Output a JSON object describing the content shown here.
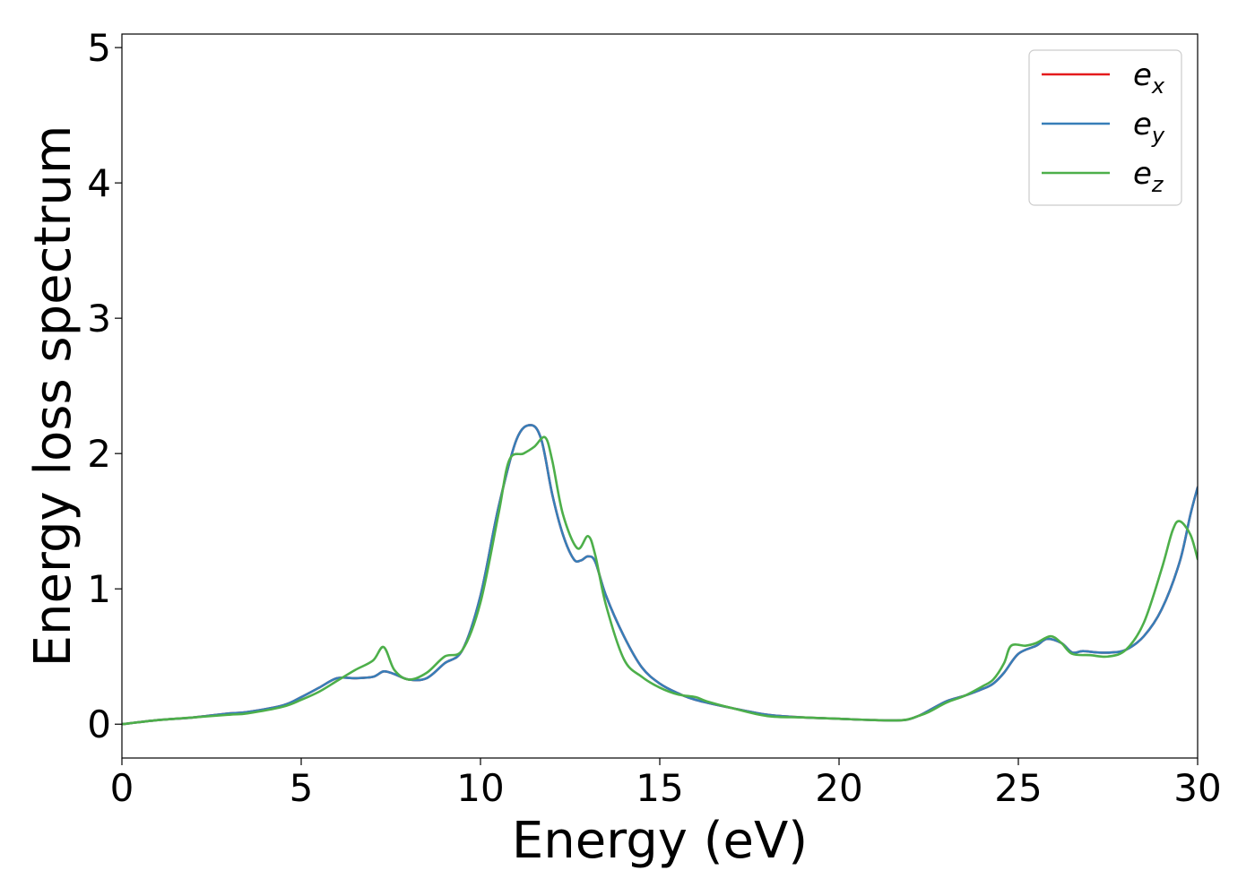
{
  "chart_data": {
    "type": "line",
    "xlabel": "Energy (eV)",
    "ylabel": "Energy loss spectrum",
    "xlim": [
      0,
      30
    ],
    "ylim": [
      -0.25,
      5.1
    ],
    "xticks": [
      0,
      5,
      10,
      15,
      20,
      25,
      30
    ],
    "yticks": [
      0,
      1,
      2,
      3,
      4,
      5
    ],
    "grid": false,
    "legend_position": "top-right",
    "series": [
      {
        "name": "e_x",
        "label_base": "e",
        "label_sub": "x",
        "color": "#e41a1c",
        "x": [
          0,
          1,
          2,
          3,
          3.5,
          4.5,
          5,
          5.5,
          6,
          6.5,
          7,
          7.3,
          7.6,
          8,
          8.5,
          9,
          9.5,
          10,
          10.5,
          11,
          11.4,
          11.7,
          12,
          12.3,
          12.6,
          12.8,
          13,
          13.2,
          13.5,
          14,
          14.5,
          15,
          15.5,
          16,
          17,
          18,
          19,
          20,
          21,
          21.8,
          22.2,
          22.5,
          23,
          23.5,
          24,
          24.3,
          24.6,
          25,
          25.5,
          25.8,
          26.2,
          26.5,
          26.8,
          27.2,
          27.6,
          28,
          28.5,
          29,
          29.5,
          29.8,
          30
        ],
        "y": [
          0,
          0.03,
          0.05,
          0.08,
          0.09,
          0.14,
          0.2,
          0.27,
          0.34,
          0.34,
          0.35,
          0.39,
          0.37,
          0.33,
          0.34,
          0.45,
          0.55,
          0.95,
          1.6,
          2.1,
          2.21,
          2.1,
          1.7,
          1.4,
          1.22,
          1.21,
          1.24,
          1.2,
          0.95,
          0.65,
          0.42,
          0.3,
          0.23,
          0.18,
          0.12,
          0.07,
          0.05,
          0.04,
          0.03,
          0.03,
          0.06,
          0.1,
          0.17,
          0.21,
          0.26,
          0.3,
          0.38,
          0.52,
          0.58,
          0.63,
          0.6,
          0.53,
          0.54,
          0.53,
          0.53,
          0.55,
          0.65,
          0.85,
          1.2,
          1.55,
          1.75
        ]
      },
      {
        "name": "e_y",
        "label_base": "e",
        "label_sub": "y",
        "color": "#377eb8",
        "x": [
          0,
          1,
          2,
          3,
          3.5,
          4.5,
          5,
          5.5,
          6,
          6.5,
          7,
          7.3,
          7.6,
          8,
          8.5,
          9,
          9.5,
          10,
          10.5,
          11,
          11.4,
          11.7,
          12,
          12.3,
          12.6,
          12.8,
          13,
          13.2,
          13.5,
          14,
          14.5,
          15,
          15.5,
          16,
          17,
          18,
          19,
          20,
          21,
          21.8,
          22.2,
          22.5,
          23,
          23.5,
          24,
          24.3,
          24.6,
          25,
          25.5,
          25.8,
          26.2,
          26.5,
          26.8,
          27.2,
          27.6,
          28,
          28.5,
          29,
          29.5,
          29.8,
          30
        ],
        "y": [
          0,
          0.03,
          0.05,
          0.08,
          0.09,
          0.14,
          0.2,
          0.27,
          0.34,
          0.34,
          0.35,
          0.39,
          0.37,
          0.33,
          0.34,
          0.45,
          0.55,
          0.95,
          1.6,
          2.1,
          2.21,
          2.1,
          1.7,
          1.4,
          1.22,
          1.21,
          1.24,
          1.2,
          0.95,
          0.65,
          0.42,
          0.3,
          0.23,
          0.18,
          0.12,
          0.07,
          0.05,
          0.04,
          0.03,
          0.03,
          0.06,
          0.1,
          0.17,
          0.21,
          0.26,
          0.3,
          0.38,
          0.52,
          0.58,
          0.63,
          0.6,
          0.53,
          0.54,
          0.53,
          0.53,
          0.55,
          0.65,
          0.85,
          1.2,
          1.55,
          1.75
        ]
      },
      {
        "name": "e_z",
        "label_base": "e",
        "label_sub": "z",
        "color": "#4daf4a",
        "x": [
          0,
          1,
          2,
          3,
          3.5,
          4.5,
          5,
          5.5,
          6,
          6.5,
          7,
          7.3,
          7.6,
          8,
          8.5,
          9,
          9.5,
          10,
          10.5,
          10.8,
          11.2,
          11.5,
          11.8,
          12,
          12.3,
          12.7,
          13,
          13.2,
          13.5,
          14,
          14.5,
          15,
          15.5,
          16,
          16.3,
          17,
          18,
          19,
          20,
          21,
          21.8,
          22.2,
          22.5,
          23,
          23.5,
          24,
          24.3,
          24.6,
          24.8,
          25.2,
          25.5,
          25.9,
          26.2,
          26.5,
          27,
          27.5,
          28,
          28.5,
          29,
          29.3,
          29.5,
          29.8,
          30
        ],
        "y": [
          0,
          0.03,
          0.05,
          0.07,
          0.08,
          0.13,
          0.18,
          0.24,
          0.32,
          0.4,
          0.47,
          0.57,
          0.4,
          0.33,
          0.38,
          0.5,
          0.55,
          0.9,
          1.55,
          1.95,
          2.0,
          2.05,
          2.12,
          1.95,
          1.55,
          1.3,
          1.39,
          1.25,
          0.88,
          0.48,
          0.35,
          0.27,
          0.22,
          0.2,
          0.17,
          0.12,
          0.06,
          0.05,
          0.04,
          0.03,
          0.03,
          0.06,
          0.09,
          0.16,
          0.21,
          0.28,
          0.33,
          0.45,
          0.58,
          0.58,
          0.6,
          0.65,
          0.6,
          0.52,
          0.51,
          0.5,
          0.55,
          0.75,
          1.15,
          1.43,
          1.5,
          1.4,
          1.22
        ]
      }
    ]
  }
}
